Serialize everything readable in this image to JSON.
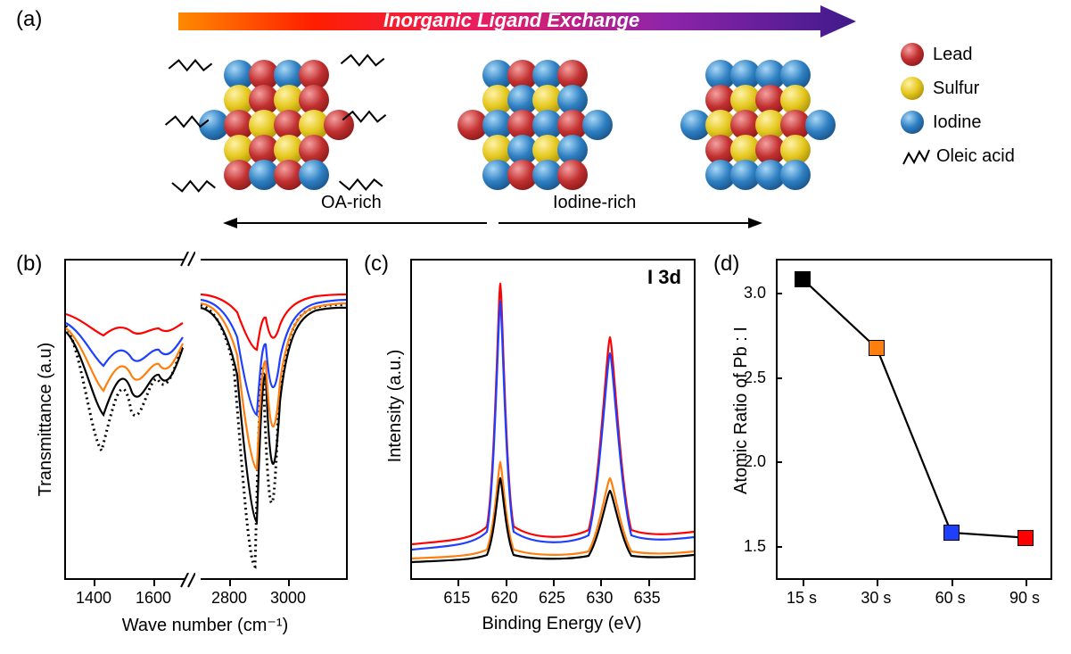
{
  "figure": {
    "panel_a": {
      "label": "(a)",
      "arrow": {
        "text": "Inorganic Ligand Exchange",
        "gradient_stops": [
          "#ff8a00",
          "#ff1e00",
          "#e81e63",
          "#8e24aa",
          "#3f1a8a"
        ],
        "text_color": "#ffffff"
      },
      "legend": {
        "lead": {
          "label": "Lead",
          "color": "#b22222"
        },
        "sulfur": {
          "label": "Sulfur",
          "color": "#e5c81e"
        },
        "iodine": {
          "label": "Iodine",
          "color": "#2e7fc2"
        },
        "oleic": {
          "label": "Oleic acid"
        }
      },
      "axis_labels": {
        "left": "OA-rich",
        "right": "Iodine-rich"
      }
    },
    "panel_b": {
      "label": "(b)",
      "xlabel": "Wave number (cm⁻¹)",
      "ylabel": "Transmittance (a.u)",
      "xticks_left": [
        1400,
        1600
      ],
      "xticks_right": [
        2800,
        3000
      ],
      "xlim_left": [
        1300,
        1700
      ],
      "xlim_right": [
        2700,
        3200
      ],
      "series_colors": {
        "ref_dotted": "#000000",
        "s15": "#000000",
        "s30": "#ff7f0e",
        "s60": "#1f3fff",
        "s90": "#ff0000"
      }
    },
    "panel_c": {
      "label": "(c)",
      "corner": "I 3d",
      "xlabel": "Binding Energy (eV)",
      "ylabel": "Intensity (a.u.)",
      "xlim": [
        610,
        640
      ],
      "xticks": [
        615,
        620,
        625,
        630,
        635
      ],
      "peaks_eV": [
        619.5,
        631.0
      ],
      "series_colors": {
        "s15": "#000000",
        "s30": "#ff7f0e",
        "s60": "#1f3fff",
        "s90": "#ff0000"
      },
      "rel_peak_height": {
        "s15": 0.28,
        "s30": 0.34,
        "s60": 0.92,
        "s90": 1.0
      }
    },
    "panel_d": {
      "label": "(d)",
      "xlabel_categories": [
        "15 s",
        "30 s",
        "60 s",
        "90 s"
      ],
      "ylabel": "Atomic Ratio of Pb : I",
      "ylim": [
        1.3,
        3.2
      ],
      "yticks": [
        1.5,
        2.0,
        2.5,
        3.0
      ],
      "points": [
        {
          "x": "15 s",
          "y": 3.08,
          "color": "#000000"
        },
        {
          "x": "30 s",
          "y": 2.67,
          "color": "#ff7f0e"
        },
        {
          "x": "60 s",
          "y": 1.58,
          "color": "#1f3fff"
        },
        {
          "x": "90 s",
          "y": 1.55,
          "color": "#ff0000"
        }
      ],
      "line_color": "#000000",
      "line_width": 3,
      "marker_size": 18
    },
    "background_color": "#ffffff"
  }
}
